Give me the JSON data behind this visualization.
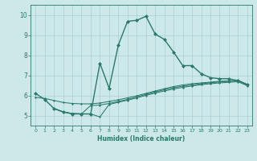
{
  "title": "",
  "xlabel": "Humidex (Indice chaleur)",
  "bg_color": "#cce8e8",
  "line_color": "#2a7a6a",
  "grid_color": "#aacfcf",
  "xlim": [
    -0.5,
    23.5
  ],
  "ylim": [
    4.5,
    10.5
  ],
  "yticks": [
    5,
    6,
    7,
    8,
    9,
    10
  ],
  "xticks": [
    0,
    1,
    2,
    3,
    4,
    5,
    6,
    7,
    8,
    9,
    10,
    11,
    12,
    13,
    14,
    15,
    16,
    17,
    18,
    19,
    20,
    21,
    22,
    23
  ],
  "main_curve_x": [
    0,
    1,
    2,
    3,
    4,
    5,
    6,
    7,
    8,
    9,
    10,
    11,
    12,
    13,
    14,
    15,
    16,
    17,
    18,
    19,
    20,
    21,
    22,
    23
  ],
  "main_curve_y": [
    6.1,
    5.8,
    5.35,
    5.18,
    5.08,
    5.08,
    5.08,
    7.6,
    6.35,
    8.5,
    9.68,
    9.73,
    9.93,
    9.05,
    8.78,
    8.15,
    7.48,
    7.48,
    7.08,
    6.88,
    6.83,
    6.83,
    6.73,
    6.53
  ],
  "line2_x": [
    0,
    1,
    2,
    3,
    4,
    5,
    6,
    7,
    8,
    9,
    10,
    11,
    12,
    13,
    14,
    15,
    16,
    17,
    18,
    19,
    20,
    21,
    22,
    23
  ],
  "line2_y": [
    5.9,
    5.85,
    5.75,
    5.65,
    5.6,
    5.58,
    5.58,
    5.62,
    5.7,
    5.78,
    5.88,
    5.98,
    6.1,
    6.22,
    6.33,
    6.44,
    6.52,
    6.58,
    6.62,
    6.66,
    6.7,
    6.72,
    6.75,
    6.55
  ],
  "line3_x": [
    2,
    3,
    4,
    5,
    6,
    7,
    8,
    9,
    10,
    11,
    12,
    13,
    14,
    15,
    16,
    17,
    18,
    19,
    20,
    21,
    22,
    23
  ],
  "line3_y": [
    5.35,
    5.18,
    5.1,
    5.08,
    5.5,
    5.52,
    5.6,
    5.7,
    5.8,
    5.92,
    6.05,
    6.17,
    6.28,
    6.38,
    6.46,
    6.52,
    6.58,
    6.63,
    6.67,
    6.7,
    6.73,
    6.53
  ],
  "line4_x": [
    2,
    3,
    4,
    5,
    6,
    7,
    8,
    9,
    10,
    11,
    12,
    13,
    14,
    15,
    16,
    17,
    18,
    19,
    20,
    21,
    22,
    23
  ],
  "line4_y": [
    5.35,
    5.18,
    5.1,
    5.08,
    5.08,
    4.93,
    5.55,
    5.66,
    5.76,
    5.88,
    6.0,
    6.12,
    6.22,
    6.32,
    6.4,
    6.47,
    6.53,
    6.58,
    6.62,
    6.65,
    6.68,
    6.48
  ]
}
